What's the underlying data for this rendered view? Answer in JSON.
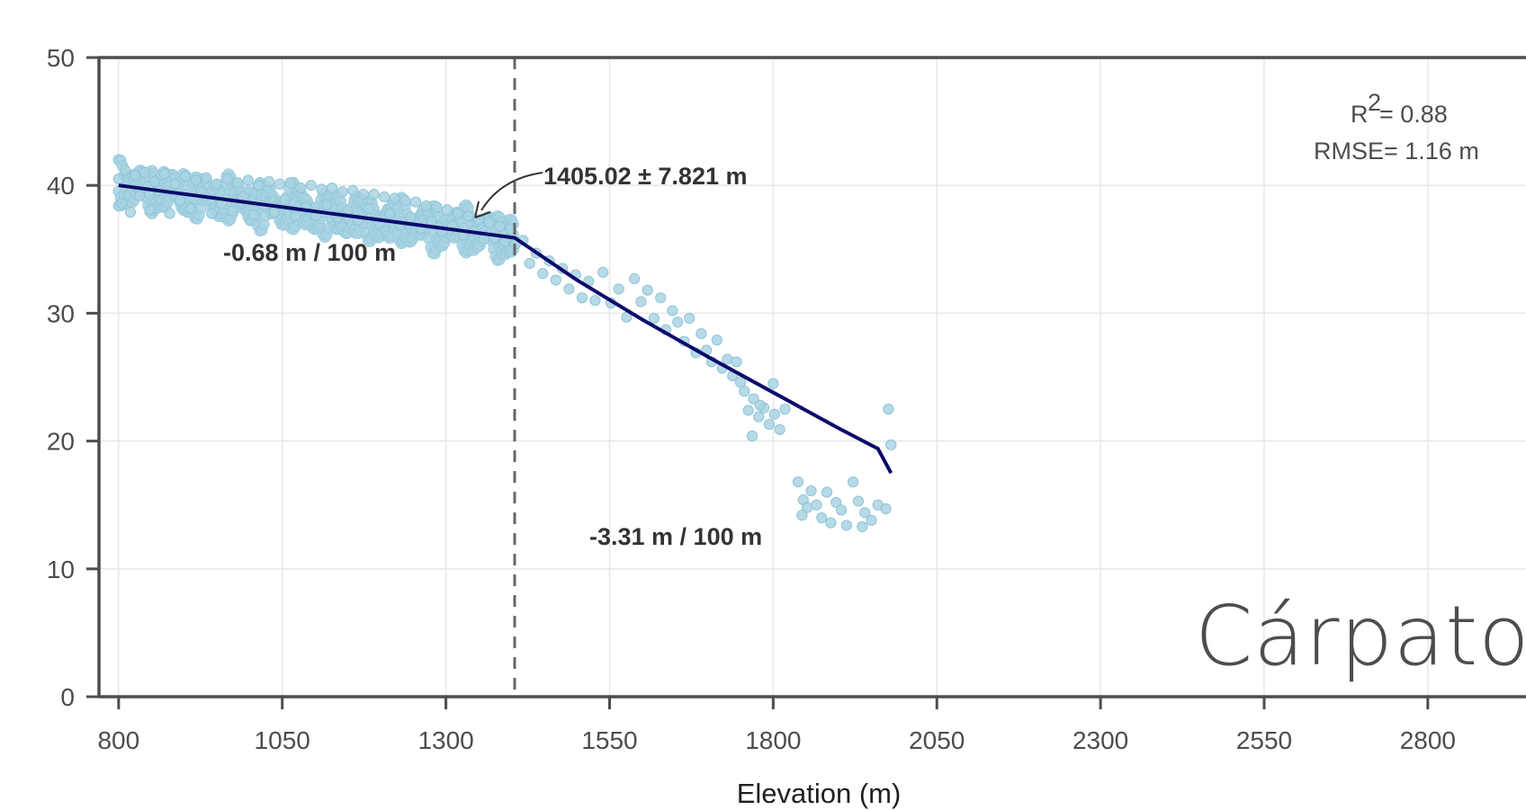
{
  "chart_data": {
    "type": "scatter",
    "title": "",
    "xlabel": "Elevation (m)",
    "ylabel": "",
    "xlim": [
      770,
      2950
    ],
    "ylim": [
      0,
      50
    ],
    "x_ticks": [
      800,
      1050,
      1300,
      1550,
      1800,
      2050,
      2300,
      2550,
      2800
    ],
    "y_ticks": [
      0,
      10,
      20,
      30,
      40,
      50
    ],
    "x_tick_labels": [
      "800",
      "1050",
      "1300",
      "1550",
      "1800",
      "2050",
      "2300",
      "2550",
      "2800"
    ],
    "y_tick_labels": [
      "0",
      "10",
      "20",
      "30",
      "40",
      "50"
    ],
    "grid": true,
    "series": [
      {
        "kind": "points",
        "color": "#a9d3e2",
        "points": [
          [
            800,
            40.5
          ],
          [
            805,
            38.6
          ],
          [
            810,
            41.2
          ],
          [
            818,
            37.9
          ],
          [
            825,
            40.8
          ],
          [
            832,
            39.2
          ],
          [
            840,
            41.0
          ],
          [
            848,
            38.1
          ],
          [
            855,
            40.3
          ],
          [
            862,
            39.6
          ],
          [
            870,
            40.9
          ],
          [
            878,
            37.8
          ],
          [
            886,
            40.1
          ],
          [
            894,
            38.8
          ],
          [
            902,
            40.7
          ],
          [
            910,
            38.2
          ],
          [
            918,
            40.4
          ],
          [
            926,
            39.5
          ],
          [
            934,
            40.6
          ],
          [
            942,
            37.8
          ],
          [
            950,
            40.1
          ],
          [
            958,
            38.6
          ],
          [
            966,
            40.5
          ],
          [
            974,
            38.0
          ],
          [
            982,
            40.2
          ],
          [
            990,
            39.1
          ],
          [
            998,
            40.4
          ],
          [
            1006,
            37.7
          ],
          [
            1014,
            40.0
          ],
          [
            1022,
            38.4
          ],
          [
            1030,
            40.3
          ],
          [
            1038,
            37.9
          ],
          [
            1046,
            40.1
          ],
          [
            1054,
            38.9
          ],
          [
            1062,
            40.2
          ],
          [
            1070,
            37.6
          ],
          [
            1078,
            39.8
          ],
          [
            1086,
            38.3
          ],
          [
            1094,
            40.0
          ],
          [
            1102,
            37.6
          ],
          [
            1110,
            39.7
          ],
          [
            1118,
            38.5
          ],
          [
            1126,
            39.8
          ],
          [
            1134,
            37.5
          ],
          [
            1142,
            39.5
          ],
          [
            1150,
            38.0
          ],
          [
            1158,
            39.6
          ],
          [
            1166,
            37.3
          ],
          [
            1174,
            39.3
          ],
          [
            1182,
            38.2
          ],
          [
            1190,
            39.3
          ],
          [
            1198,
            37.0
          ],
          [
            1206,
            39.1
          ],
          [
            1214,
            37.8
          ],
          [
            1222,
            39.0
          ],
          [
            1230,
            36.9
          ],
          [
            1238,
            38.8
          ],
          [
            1246,
            37.5
          ],
          [
            1254,
            38.7
          ],
          [
            1262,
            36.6
          ],
          [
            1270,
            38.4
          ],
          [
            1278,
            37.2
          ],
          [
            1286,
            38.3
          ],
          [
            1294,
            36.4
          ],
          [
            1302,
            38.1
          ],
          [
            1310,
            36.8
          ],
          [
            1318,
            37.8
          ],
          [
            1326,
            36.1
          ],
          [
            1334,
            37.6
          ],
          [
            1342,
            36.4
          ],
          [
            1350,
            37.3
          ],
          [
            1358,
            35.8
          ],
          [
            1366,
            37.1
          ],
          [
            1374,
            35.9
          ],
          [
            1382,
            36.8
          ],
          [
            1390,
            35.6
          ],
          [
            1398,
            36.6
          ],
          [
            1406,
            35.4
          ],
          [
            1418,
            35.7
          ],
          [
            1428,
            33.9
          ],
          [
            1438,
            34.7
          ],
          [
            1448,
            33.1
          ],
          [
            1458,
            34.1
          ],
          [
            1468,
            32.6
          ],
          [
            1478,
            33.5
          ],
          [
            1488,
            31.9
          ],
          [
            1498,
            33.0
          ],
          [
            1508,
            31.2
          ],
          [
            1518,
            32.5
          ],
          [
            1528,
            31.0
          ],
          [
            1540,
            33.2
          ],
          [
            1552,
            30.8
          ],
          [
            1564,
            31.9
          ],
          [
            1576,
            29.7
          ],
          [
            1588,
            32.7
          ],
          [
            1598,
            30.9
          ],
          [
            1608,
            31.8
          ],
          [
            1618,
            29.6
          ],
          [
            1628,
            31.2
          ],
          [
            1636,
            28.7
          ],
          [
            1646,
            30.2
          ],
          [
            1654,
            29.3
          ],
          [
            1664,
            27.8
          ],
          [
            1672,
            29.6
          ],
          [
            1682,
            26.9
          ],
          [
            1690,
            28.4
          ],
          [
            1698,
            27.1
          ],
          [
            1706,
            26.2
          ],
          [
            1714,
            27.9
          ],
          [
            1722,
            25.7
          ],
          [
            1730,
            26.4
          ],
          [
            1738,
            25.1
          ],
          [
            1744,
            26.2
          ],
          [
            1750,
            24.6
          ],
          [
            1756,
            23.9
          ],
          [
            1762,
            22.4
          ],
          [
            1770,
            23.3
          ],
          [
            1778,
            21.9
          ],
          [
            1786,
            22.6
          ],
          [
            1794,
            21.3
          ],
          [
            1802,
            22.1
          ],
          [
            1810,
            20.9
          ],
          [
            1818,
            22.5
          ],
          [
            1768,
            20.4
          ],
          [
            1780,
            22.8
          ],
          [
            1800,
            24.5
          ],
          [
            1838,
            16.8
          ],
          [
            1846,
            15.4
          ],
          [
            1852,
            14.8
          ],
          [
            1858,
            16.1
          ],
          [
            1866,
            15.0
          ],
          [
            1874,
            14.0
          ],
          [
            1882,
            16.0
          ],
          [
            1888,
            13.6
          ],
          [
            1896,
            15.2
          ],
          [
            1904,
            14.6
          ],
          [
            1912,
            13.4
          ],
          [
            1922,
            16.8
          ],
          [
            1930,
            15.3
          ],
          [
            1940,
            14.4
          ],
          [
            1950,
            13.8
          ],
          [
            1960,
            15.0
          ],
          [
            1972,
            14.7
          ],
          [
            1976,
            22.5
          ],
          [
            1980,
            19.7
          ],
          [
            1936,
            13.3
          ],
          [
            1844,
            14.2
          ]
        ]
      },
      {
        "kind": "fit-line",
        "color": "#0d0a6b",
        "points": [
          [
            800,
            40.0
          ],
          [
            1405.02,
            35.9
          ],
          [
            1500,
            32.6
          ],
          [
            1600,
            29.5
          ],
          [
            1700,
            26.6
          ],
          [
            1800,
            23.8
          ],
          [
            1900,
            21.0
          ],
          [
            1960,
            19.4
          ],
          [
            1980,
            17.5
          ]
        ]
      }
    ],
    "reference_line": {
      "x": 1405.02,
      "style": "dashed",
      "color": "#666666"
    },
    "annotations": {
      "breakpoint": "1405.02 ± 7.821 m",
      "slope_left": "-0.68 m / 100 m",
      "slope_right": "-3.31 m / 100 m",
      "r2_label": "R",
      "r2_superscript": "2",
      "r2_value": "= 0.88",
      "rmse": "RMSE= 1.16 m",
      "region": "Cárpatos"
    }
  }
}
